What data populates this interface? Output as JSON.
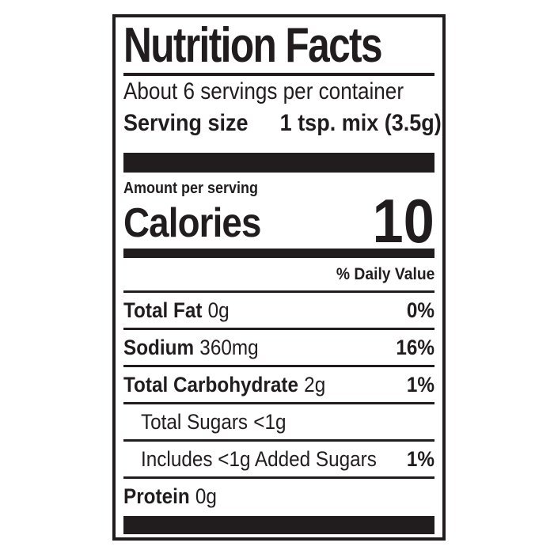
{
  "colors": {
    "ink": "#211d1e",
    "bg": "#ffffff"
  },
  "label": {
    "title": "Nutrition Facts",
    "servings_per_container": "About 6 servings per container",
    "serving_size": {
      "label": "Serving size",
      "value": "1 tsp. mix (3.5g)"
    },
    "amount_per_serving": "Amount per serving",
    "calories": {
      "label": "Calories",
      "value": "10"
    },
    "daily_value_header": "% Daily Value",
    "rows": [
      {
        "name": "Total Fat",
        "amount": "0g",
        "dv": "0%"
      },
      {
        "name": "Sodium",
        "amount": "360mg",
        "dv": "16%"
      },
      {
        "name": "Total Carbohydrate",
        "amount": "2g",
        "dv": "1%"
      },
      {
        "name": "Total Sugars",
        "amount": "<1g",
        "dv": ""
      },
      {
        "name": "Includes <1g Added Sugars",
        "amount": "",
        "dv": "1%"
      },
      {
        "name": "Protein",
        "amount": "0g",
        "dv": ""
      }
    ]
  }
}
